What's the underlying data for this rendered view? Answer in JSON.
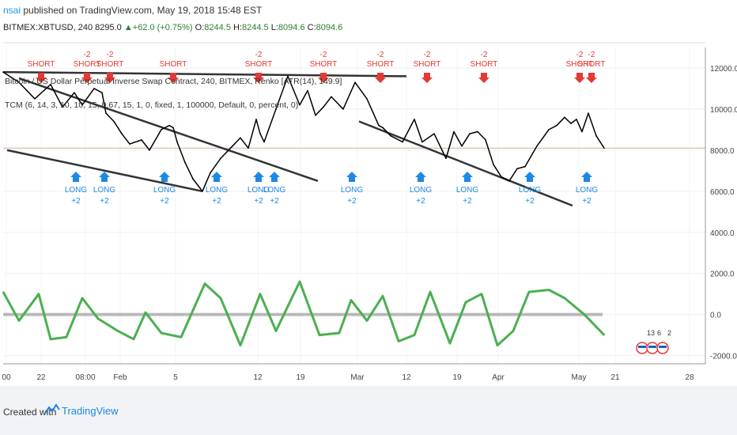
{
  "header": {
    "user": "nsai",
    "published": "published on TradingView.com, May 19, 2018 15:48 EST"
  },
  "symbol_bar": {
    "symbol": "BITMEX:XBTUSD, 240",
    "price": "8295.0",
    "change": "+62.0 (+0.75%)",
    "o_label": "O:",
    "o": "8244.5",
    "h_label": "H:",
    "h": "8244.5",
    "l_label": "L:",
    "l": "8094.6",
    "c_label": "C:",
    "c": "8094.6"
  },
  "chart_data": {
    "type": "line",
    "title": "Bitcoin / US Dollar Perpetual Inverse Swap Contract, 240, BITMEX, Renko [ATR(14), 149.9]",
    "indicator": "TCM (6, 14, 3, 10, 10, 15, 0.67, 15, 1, 0, fixed, 1, 100000, Default, 0, percent, 0)",
    "price_axis": {
      "ticks": [
        "12000.0",
        "10000.0",
        "8000.0",
        "6000.0",
        "4000.0",
        "2000.0",
        "0.0",
        "-2000.0"
      ],
      "ylim": [
        -2400,
        13000
      ]
    },
    "x_ticks": [
      "00",
      "22",
      "08:00",
      "Feb",
      "5",
      "12",
      "19",
      "Mar",
      "12",
      "19",
      "Apr",
      "May",
      "21",
      "28"
    ],
    "series": [
      {
        "name": "price",
        "color": "#000000",
        "x": [
          0,
          20,
          40,
          60,
          75,
          90,
          100,
          115,
          125,
          130,
          140,
          150,
          160,
          175,
          185,
          200,
          210,
          215,
          220,
          230,
          240,
          252,
          262,
          275,
          290,
          300,
          310,
          320,
          325,
          330,
          345,
          360,
          375,
          385,
          395,
          405,
          415,
          430,
          445,
          460,
          475,
          480,
          490,
          505,
          520,
          530,
          545,
          560,
          570,
          580,
          590,
          600,
          610,
          620,
          630,
          640,
          650,
          660,
          675,
          690,
          700,
          710,
          718,
          725,
          732,
          740,
          750,
          760
        ],
        "y": [
          11800,
          11300,
          10500,
          11200,
          10100,
          10800,
          10200,
          11000,
          10800,
          9800,
          9400,
          8800,
          8300,
          8500,
          8000,
          9000,
          9200,
          9100,
          8400,
          7400,
          6600,
          6000,
          6900,
          7600,
          8200,
          8600,
          8100,
          9500,
          8800,
          8400,
          10000,
          11600,
          10200,
          10900,
          9700,
          10100,
          10600,
          10000,
          11300,
          10500,
          9200,
          9100,
          8700,
          8400,
          9500,
          8400,
          8800,
          7600,
          8900,
          8200,
          8800,
          8900,
          8500,
          7300,
          6700,
          6500,
          7100,
          7200,
          8200,
          9000,
          9200,
          9600,
          9300,
          9500,
          8900,
          9800,
          8700,
          8100
        ]
      },
      {
        "name": "oscillator",
        "color": "#4caf50",
        "x": [
          0,
          20,
          45,
          60,
          80,
          100,
          120,
          145,
          165,
          180,
          200,
          225,
          255,
          275,
          300,
          325,
          345,
          375,
          400,
          425,
          440,
          460,
          480,
          500,
          520,
          540,
          565,
          585,
          605,
          625,
          645,
          665,
          690,
          710,
          735,
          760
        ],
        "y": [
          1100,
          -300,
          1000,
          -1200,
          -1100,
          800,
          -200,
          -800,
          -1200,
          100,
          -900,
          -1100,
          1500,
          800,
          -1500,
          1000,
          -800,
          1600,
          -1000,
          -900,
          700,
          -300,
          900,
          -1300,
          -1000,
          1100,
          -1400,
          600,
          1000,
          -1500,
          -800,
          1100,
          1200,
          800,
          0,
          -1000
        ]
      }
    ],
    "trendlines": [
      {
        "x1": 0,
        "y1": 11800,
        "x2": 510,
        "y2": 11600
      },
      {
        "x1": 20,
        "y1": 11500,
        "x2": 398,
        "y2": 6500
      },
      {
        "x1": 5,
        "y1": 8000,
        "x2": 252,
        "y2": 6000
      },
      {
        "x1": 450,
        "y1": 9400,
        "x2": 720,
        "y2": 5300
      }
    ],
    "hline": 8100,
    "signals": [
      {
        "x": 48,
        "type": "short",
        "qty": "",
        "text": "SHORT"
      },
      {
        "x": 106,
        "type": "short",
        "qty": "-2",
        "text": "SHORT"
      },
      {
        "x": 135,
        "type": "short",
        "qty": "-2",
        "text": "SHORT"
      },
      {
        "x": 215,
        "type": "short",
        "qty": "",
        "text": "SHORT"
      },
      {
        "x": 323,
        "type": "short",
        "qty": "-2",
        "text": "SHORT"
      },
      {
        "x": 405,
        "type": "short",
        "qty": "-2",
        "text": "SHORT"
      },
      {
        "x": 477,
        "type": "short",
        "qty": "-2",
        "text": "SHORT"
      },
      {
        "x": 536,
        "type": "short",
        "qty": "-2",
        "text": "SHORT"
      },
      {
        "x": 608,
        "type": "short",
        "qty": "-2",
        "text": "SHORT"
      },
      {
        "x": 729,
        "type": "short",
        "qty": "-2",
        "text": "SHORT"
      },
      {
        "x": 744,
        "type": "short",
        "qty": "-2",
        "text": "SHORT"
      },
      {
        "x": 92,
        "type": "long",
        "qty": "+2",
        "text": "LONG"
      },
      {
        "x": 128,
        "type": "long",
        "qty": "+2",
        "text": "LONG"
      },
      {
        "x": 204,
        "type": "long",
        "qty": "+2",
        "text": "LONG"
      },
      {
        "x": 270,
        "type": "long",
        "qty": "+2",
        "text": "LONG"
      },
      {
        "x": 323,
        "type": "long",
        "qty": "+2",
        "text": "LONG"
      },
      {
        "x": 343,
        "type": "long",
        "qty": "+2",
        "text": "LONG"
      },
      {
        "x": 441,
        "type": "long",
        "qty": "+2",
        "text": "LONG"
      },
      {
        "x": 528,
        "type": "long",
        "qty": "+2",
        "text": "LONG"
      },
      {
        "x": 587,
        "type": "long",
        "qty": "+2",
        "text": "LONG"
      },
      {
        "x": 666,
        "type": "long",
        "qty": "+2",
        "text": "LONG"
      },
      {
        "x": 738,
        "type": "long",
        "qty": "+2",
        "text": "LONG"
      }
    ],
    "events": [
      "13",
      "6",
      "2"
    ]
  },
  "footer": {
    "created": "Created with",
    "brand": "TradingView"
  }
}
